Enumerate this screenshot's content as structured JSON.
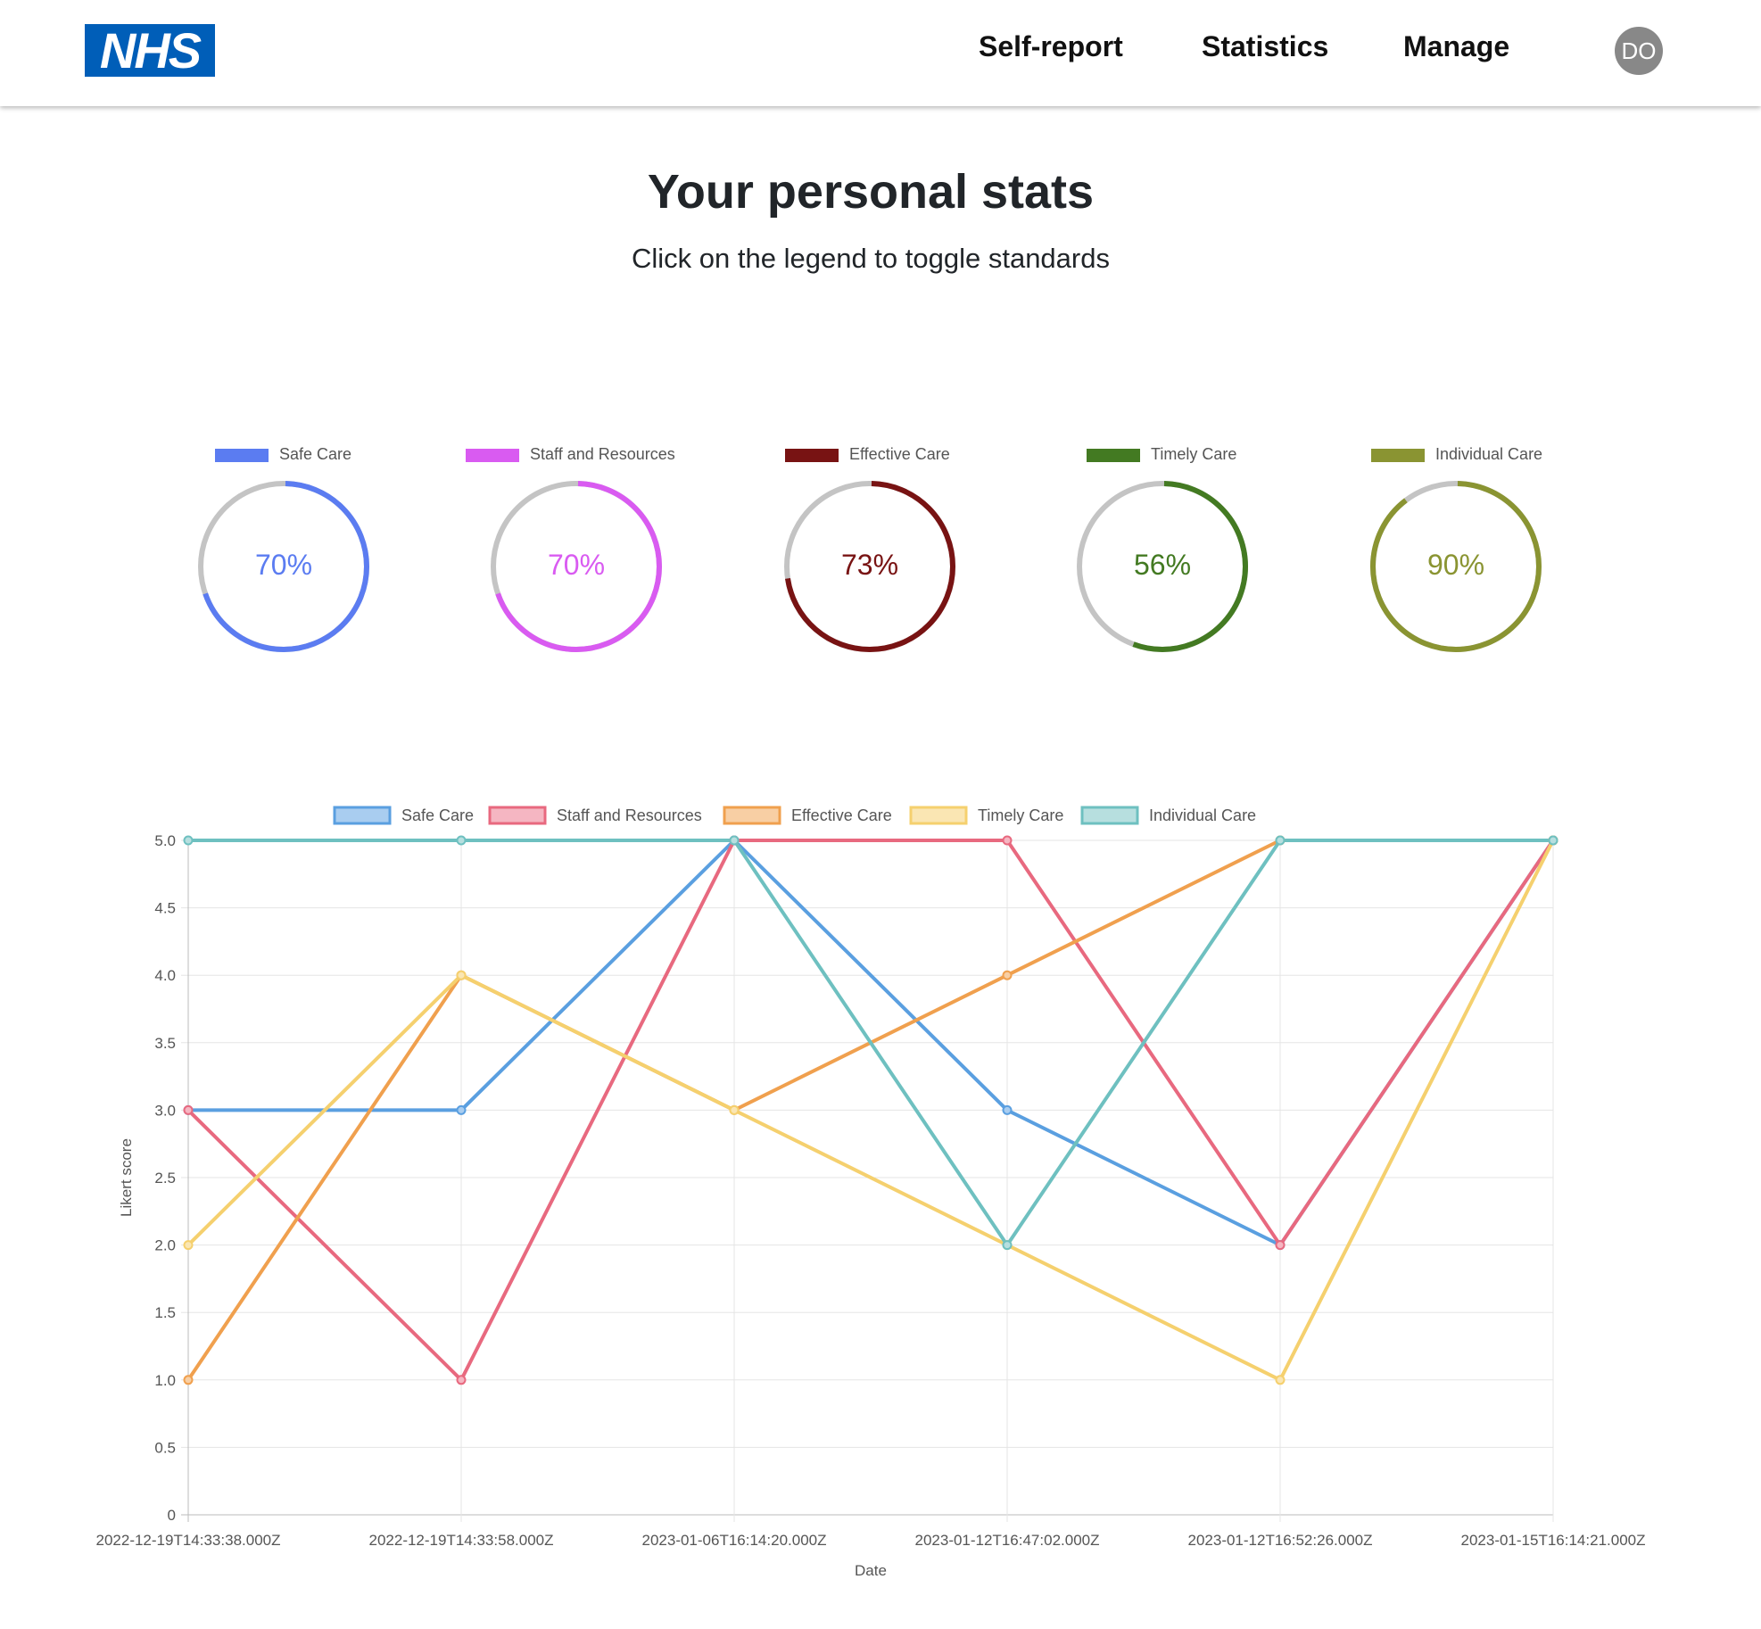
{
  "header": {
    "logo_text": "NHS",
    "nav": [
      "Self-report",
      "Statistics",
      "Manage"
    ],
    "avatar_initials": "DO"
  },
  "page": {
    "title": "Your personal stats",
    "subtitle": "Click on the legend to toggle standards"
  },
  "donuts": [
    {
      "label": "Safe Care",
      "value": 70,
      "text": "70%",
      "color": "#5b7cf1"
    },
    {
      "label": "Staff and Resources",
      "value": 70,
      "text": "70%",
      "color": "#d95bf1"
    },
    {
      "label": "Effective Care",
      "value": 73,
      "text": "73%",
      "color": "#781313"
    },
    {
      "label": "Timely Care",
      "value": 56,
      "text": "56%",
      "color": "#437a22"
    },
    {
      "label": "Individual Care",
      "value": 90,
      "text": "90%",
      "color": "#8a9432"
    }
  ],
  "chart_data": {
    "type": "line",
    "title": "",
    "xlabel": "Date",
    "ylabel": "Likert score",
    "ylim": [
      0,
      5
    ],
    "yticks": [
      "0",
      "0.5",
      "1.0",
      "1.5",
      "2.0",
      "2.5",
      "3.0",
      "3.5",
      "4.0",
      "4.5",
      "5.0"
    ],
    "categories": [
      "2022-12-19T14:33:38.000Z",
      "2022-12-19T14:33:58.000Z",
      "2023-01-06T16:14:20.000Z",
      "2023-01-12T16:47:02.000Z",
      "2023-01-12T16:52:26.000Z",
      "2023-01-15T16:14:21.000Z"
    ],
    "series": [
      {
        "name": "Safe Care",
        "values": [
          3,
          3,
          5,
          3,
          2,
          5
        ],
        "color": "#5a9fe0",
        "fill": "#a9cdf0"
      },
      {
        "name": "Staff and Resources",
        "values": [
          3,
          1,
          5,
          5,
          2,
          5
        ],
        "color": "#e8697f",
        "fill": "#f5b6c2"
      },
      {
        "name": "Effective Care",
        "values": [
          1,
          4,
          3,
          4,
          5,
          5
        ],
        "color": "#f0a04e",
        "fill": "#f8cfa4"
      },
      {
        "name": "Timely Care",
        "values": [
          2,
          4,
          3,
          2,
          1,
          5
        ],
        "color": "#f5d06e",
        "fill": "#fae6b3"
      },
      {
        "name": "Individual Care",
        "values": [
          5,
          5,
          5,
          2,
          5,
          5
        ],
        "color": "#6ec0c0",
        "fill": "#b7dfdf"
      }
    ]
  }
}
